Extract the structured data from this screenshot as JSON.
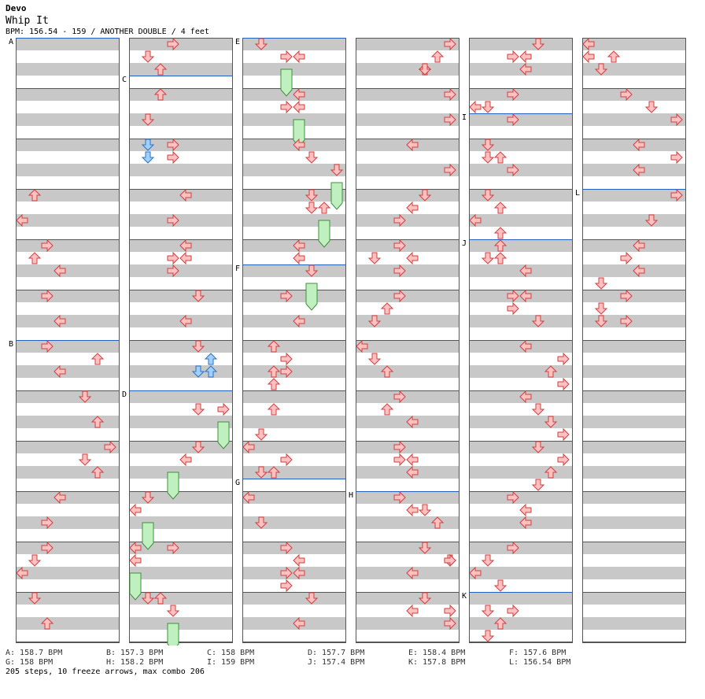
{
  "header": {
    "artist": "Devo",
    "title": "Whip It",
    "info": "BPM: 156.54 - 159 / ANOTHER DOUBLE / 4 feet"
  },
  "colors": {
    "red_fill": "#ffc0c0",
    "red_stroke": "#d04040",
    "blue_fill": "#a0d0ff",
    "blue_stroke": "#3070c0",
    "freeze_fill": "#c0f0c0",
    "freeze_stroke": "#409040",
    "band": "#c8c8c8",
    "bpm_line": "#2060c0"
  },
  "bpm_labels": [
    {
      "id": "A",
      "col": 0,
      "beat": 0
    },
    {
      "id": "B",
      "col": 0,
      "beat": 24
    },
    {
      "id": "C",
      "col": 1,
      "beat": 3
    },
    {
      "id": "D",
      "col": 1,
      "beat": 28
    },
    {
      "id": "E",
      "col": 2,
      "beat": 0
    },
    {
      "id": "F",
      "col": 2,
      "beat": 18
    },
    {
      "id": "G",
      "col": 2,
      "beat": 35
    },
    {
      "id": "H",
      "col": 3,
      "beat": 36
    },
    {
      "id": "I",
      "col": 4,
      "beat": 6
    },
    {
      "id": "J",
      "col": 4,
      "beat": 16
    },
    {
      "id": "K",
      "col": 4,
      "beat": 44
    },
    {
      "id": "L",
      "col": 5,
      "beat": 12
    }
  ],
  "notes": [
    {
      "c": 0,
      "l": 1,
      "b": 12,
      "d": "up"
    },
    {
      "c": 0,
      "l": 0,
      "b": 14,
      "d": "left"
    },
    {
      "c": 0,
      "l": 2,
      "b": 16,
      "d": "right"
    },
    {
      "c": 0,
      "l": 1,
      "b": 17,
      "d": "up"
    },
    {
      "c": 0,
      "l": 3,
      "b": 18,
      "d": "left"
    },
    {
      "c": 0,
      "l": 2,
      "b": 20,
      "d": "right"
    },
    {
      "c": 0,
      "l": 3,
      "b": 22,
      "d": "left"
    },
    {
      "c": 0,
      "l": 2,
      "b": 24,
      "d": "right"
    },
    {
      "c": 0,
      "l": 6,
      "b": 25,
      "d": "up"
    },
    {
      "c": 0,
      "l": 3,
      "b": 26,
      "d": "left"
    },
    {
      "c": 0,
      "l": 5,
      "b": 28,
      "d": "down"
    },
    {
      "c": 0,
      "l": 6,
      "b": 30,
      "d": "up"
    },
    {
      "c": 0,
      "l": 7,
      "b": 32,
      "d": "right"
    },
    {
      "c": 0,
      "l": 5,
      "b": 33,
      "d": "down"
    },
    {
      "c": 0,
      "l": 6,
      "b": 34,
      "d": "up"
    },
    {
      "c": 0,
      "l": 3,
      "b": 36,
      "d": "left"
    },
    {
      "c": 0,
      "l": 2,
      "b": 38,
      "d": "right"
    },
    {
      "c": 0,
      "l": 2,
      "b": 40,
      "d": "right"
    },
    {
      "c": 0,
      "l": 1,
      "b": 41,
      "d": "down"
    },
    {
      "c": 0,
      "l": 0,
      "b": 42,
      "d": "left"
    },
    {
      "c": 0,
      "l": 1,
      "b": 44,
      "d": "down"
    },
    {
      "c": 0,
      "l": 2,
      "b": 46,
      "d": "up"
    },
    {
      "c": 1,
      "l": 3,
      "b": 0,
      "d": "right"
    },
    {
      "c": 1,
      "l": 1,
      "b": 1,
      "d": "down"
    },
    {
      "c": 1,
      "l": 2,
      "b": 2,
      "d": "up"
    },
    {
      "c": 1,
      "l": 2,
      "b": 4,
      "d": "up"
    },
    {
      "c": 1,
      "l": 1,
      "b": 6,
      "d": "down"
    },
    {
      "c": 1,
      "l": 1,
      "b": 8,
      "d": "down"
    },
    {
      "c": 1,
      "l": 3,
      "b": 8,
      "d": "right"
    },
    {
      "c": 1,
      "l": 1,
      "b": 9,
      "d": "down"
    },
    {
      "c": 1,
      "l": 3,
      "b": 9,
      "d": "right"
    },
    {
      "c": 1,
      "l": 4,
      "b": 12,
      "d": "left"
    },
    {
      "c": 1,
      "l": 3,
      "b": 14,
      "d": "right"
    },
    {
      "c": 1,
      "l": 4,
      "b": 16,
      "d": "left"
    },
    {
      "c": 1,
      "l": 3,
      "b": 17,
      "d": "right"
    },
    {
      "c": 1,
      "l": 4,
      "b": 17,
      "d": "left"
    },
    {
      "c": 1,
      "l": 3,
      "b": 18,
      "d": "right"
    },
    {
      "c": 1,
      "l": 5,
      "b": 20,
      "d": "down"
    },
    {
      "c": 1,
      "l": 4,
      "b": 22,
      "d": "left"
    },
    {
      "c": 1,
      "l": 5,
      "b": 24,
      "d": "down"
    },
    {
      "c": 1,
      "l": 6,
      "b": 25,
      "d": "up"
    },
    {
      "c": 1,
      "l": 5,
      "b": 26,
      "d": "down"
    },
    {
      "c": 1,
      "l": 6,
      "b": 26,
      "d": "up"
    },
    {
      "c": 1,
      "l": 5,
      "b": 29,
      "d": "down"
    },
    {
      "c": 1,
      "l": 7,
      "b": 29,
      "d": "right"
    },
    {
      "c": 1,
      "l": 5,
      "b": 32,
      "d": "down"
    },
    {
      "c": 1,
      "l": 4,
      "b": 33,
      "d": "left"
    },
    {
      "c": 1,
      "l": 0,
      "b": 37,
      "d": "left"
    },
    {
      "c": 1,
      "l": 1,
      "b": 36,
      "d": "down"
    },
    {
      "c": 1,
      "l": 3,
      "b": 40,
      "d": "right"
    },
    {
      "c": 1,
      "l": 0,
      "b": 40,
      "d": "left"
    },
    {
      "c": 1,
      "l": 0,
      "b": 41,
      "d": "left"
    },
    {
      "c": 1,
      "l": 1,
      "b": 44,
      "d": "down"
    },
    {
      "c": 1,
      "l": 2,
      "b": 44,
      "d": "up"
    },
    {
      "c": 1,
      "l": 3,
      "b": 45,
      "d": "down"
    },
    {
      "c": 2,
      "l": 1,
      "b": 0,
      "d": "down"
    },
    {
      "c": 2,
      "l": 4,
      "b": 1,
      "d": "left"
    },
    {
      "c": 2,
      "l": 3,
      "b": 1,
      "d": "right"
    },
    {
      "c": 2,
      "l": 4,
      "b": 4,
      "d": "left"
    },
    {
      "c": 2,
      "l": 3,
      "b": 5,
      "d": "right"
    },
    {
      "c": 2,
      "l": 4,
      "b": 5,
      "d": "left"
    },
    {
      "c": 2,
      "l": 4,
      "b": 8,
      "d": "left"
    },
    {
      "c": 2,
      "l": 5,
      "b": 9,
      "d": "down"
    },
    {
      "c": 2,
      "l": 7,
      "b": 10,
      "d": "down"
    },
    {
      "c": 2,
      "l": 5,
      "b": 12,
      "d": "down"
    },
    {
      "c": 2,
      "l": 5,
      "b": 13,
      "d": "down"
    },
    {
      "c": 2,
      "l": 6,
      "b": 13,
      "d": "up"
    },
    {
      "c": 2,
      "l": 4,
      "b": 16,
      "d": "left"
    },
    {
      "c": 2,
      "l": 4,
      "b": 17,
      "d": "left"
    },
    {
      "c": 2,
      "l": 5,
      "b": 18,
      "d": "down"
    },
    {
      "c": 2,
      "l": 3,
      "b": 20,
      "d": "right"
    },
    {
      "c": 2,
      "l": 4,
      "b": 22,
      "d": "left"
    },
    {
      "c": 2,
      "l": 2,
      "b": 24,
      "d": "up"
    },
    {
      "c": 2,
      "l": 3,
      "b": 25,
      "d": "right"
    },
    {
      "c": 2,
      "l": 2,
      "b": 26,
      "d": "up"
    },
    {
      "c": 2,
      "l": 3,
      "b": 26,
      "d": "right"
    },
    {
      "c": 2,
      "l": 2,
      "b": 27,
      "d": "up"
    },
    {
      "c": 2,
      "l": 2,
      "b": 29,
      "d": "up"
    },
    {
      "c": 2,
      "l": 1,
      "b": 31,
      "d": "down"
    },
    {
      "c": 2,
      "l": 0,
      "b": 32,
      "d": "left"
    },
    {
      "c": 2,
      "l": 3,
      "b": 33,
      "d": "right"
    },
    {
      "c": 2,
      "l": 2,
      "b": 34,
      "d": "up"
    },
    {
      "c": 2,
      "l": 1,
      "b": 34,
      "d": "down"
    },
    {
      "c": 2,
      "l": 0,
      "b": 36,
      "d": "left"
    },
    {
      "c": 2,
      "l": 1,
      "b": 38,
      "d": "down"
    },
    {
      "c": 2,
      "l": 3,
      "b": 40,
      "d": "right"
    },
    {
      "c": 2,
      "l": 4,
      "b": 41,
      "d": "left"
    },
    {
      "c": 2,
      "l": 3,
      "b": 42,
      "d": "right"
    },
    {
      "c": 2,
      "l": 4,
      "b": 42,
      "d": "left"
    },
    {
      "c": 2,
      "l": 3,
      "b": 43,
      "d": "right"
    },
    {
      "c": 2,
      "l": 5,
      "b": 44,
      "d": "down"
    },
    {
      "c": 2,
      "l": 4,
      "b": 46,
      "d": "left"
    },
    {
      "c": 3,
      "l": 7,
      "b": 0,
      "d": "right"
    },
    {
      "c": 3,
      "l": 6,
      "b": 1,
      "d": "up"
    },
    {
      "c": 3,
      "l": 5,
      "b": 2,
      "d": "up"
    },
    {
      "c": 3,
      "l": 5,
      "b": 2,
      "d": "down"
    },
    {
      "c": 3,
      "l": 7,
      "b": 4,
      "d": "right"
    },
    {
      "c": 3,
      "l": 7,
      "b": 6,
      "d": "right"
    },
    {
      "c": 3,
      "l": 4,
      "b": 8,
      "d": "left"
    },
    {
      "c": 3,
      "l": 7,
      "b": 10,
      "d": "right"
    },
    {
      "c": 3,
      "l": 5,
      "b": 12,
      "d": "down"
    },
    {
      "c": 3,
      "l": 4,
      "b": 13,
      "d": "left"
    },
    {
      "c": 3,
      "l": 3,
      "b": 14,
      "d": "right"
    },
    {
      "c": 3,
      "l": 3,
      "b": 16,
      "d": "right"
    },
    {
      "c": 3,
      "l": 1,
      "b": 17,
      "d": "down"
    },
    {
      "c": 3,
      "l": 4,
      "b": 17,
      "d": "left"
    },
    {
      "c": 3,
      "l": 3,
      "b": 18,
      "d": "right"
    },
    {
      "c": 3,
      "l": 3,
      "b": 20,
      "d": "right"
    },
    {
      "c": 3,
      "l": 2,
      "b": 21,
      "d": "up"
    },
    {
      "c": 3,
      "l": 1,
      "b": 22,
      "d": "down"
    },
    {
      "c": 3,
      "l": 0,
      "b": 24,
      "d": "left"
    },
    {
      "c": 3,
      "l": 1,
      "b": 25,
      "d": "down"
    },
    {
      "c": 3,
      "l": 2,
      "b": 26,
      "d": "up"
    },
    {
      "c": 3,
      "l": 3,
      "b": 28,
      "d": "right"
    },
    {
      "c": 3,
      "l": 2,
      "b": 29,
      "d": "up"
    },
    {
      "c": 3,
      "l": 4,
      "b": 30,
      "d": "left"
    },
    {
      "c": 3,
      "l": 3,
      "b": 32,
      "d": "right"
    },
    {
      "c": 3,
      "l": 4,
      "b": 33,
      "d": "left"
    },
    {
      "c": 3,
      "l": 3,
      "b": 33,
      "d": "right"
    },
    {
      "c": 3,
      "l": 4,
      "b": 34,
      "d": "left"
    },
    {
      "c": 3,
      "l": 3,
      "b": 36,
      "d": "right"
    },
    {
      "c": 3,
      "l": 5,
      "b": 37,
      "d": "down"
    },
    {
      "c": 3,
      "l": 4,
      "b": 37,
      "d": "left"
    },
    {
      "c": 3,
      "l": 6,
      "b": 38,
      "d": "up"
    },
    {
      "c": 3,
      "l": 5,
      "b": 40,
      "d": "down"
    },
    {
      "c": 3,
      "l": 7,
      "b": 41,
      "d": "down"
    },
    {
      "c": 3,
      "l": 7,
      "b": 41,
      "d": "right"
    },
    {
      "c": 3,
      "l": 4,
      "b": 42,
      "d": "left"
    },
    {
      "c": 3,
      "l": 5,
      "b": 44,
      "d": "down"
    },
    {
      "c": 3,
      "l": 4,
      "b": 45,
      "d": "left"
    },
    {
      "c": 3,
      "l": 7,
      "b": 45,
      "d": "right"
    },
    {
      "c": 3,
      "l": 7,
      "b": 46,
      "d": "right"
    },
    {
      "c": 4,
      "l": 5,
      "b": 0,
      "d": "down"
    },
    {
      "c": 4,
      "l": 4,
      "b": 1,
      "d": "left"
    },
    {
      "c": 4,
      "l": 3,
      "b": 1,
      "d": "right"
    },
    {
      "c": 4,
      "l": 4,
      "b": 2,
      "d": "left"
    },
    {
      "c": 4,
      "l": 3,
      "b": 4,
      "d": "right"
    },
    {
      "c": 4,
      "l": 1,
      "b": 5,
      "d": "down"
    },
    {
      "c": 4,
      "l": 0,
      "b": 5,
      "d": "left"
    },
    {
      "c": 4,
      "l": 3,
      "b": 6,
      "d": "right"
    },
    {
      "c": 4,
      "l": 1,
      "b": 8,
      "d": "down"
    },
    {
      "c": 4,
      "l": 2,
      "b": 9,
      "d": "up"
    },
    {
      "c": 4,
      "l": 1,
      "b": 9,
      "d": "down"
    },
    {
      "c": 4,
      "l": 3,
      "b": 10,
      "d": "right"
    },
    {
      "c": 4,
      "l": 1,
      "b": 12,
      "d": "down"
    },
    {
      "c": 4,
      "l": 2,
      "b": 13,
      "d": "up"
    },
    {
      "c": 4,
      "l": 0,
      "b": 14,
      "d": "left"
    },
    {
      "c": 4,
      "l": 2,
      "b": 15,
      "d": "up"
    },
    {
      "c": 4,
      "l": 2,
      "b": 16,
      "d": "up"
    },
    {
      "c": 4,
      "l": 1,
      "b": 17,
      "d": "down"
    },
    {
      "c": 4,
      "l": 2,
      "b": 17,
      "d": "up"
    },
    {
      "c": 4,
      "l": 4,
      "b": 18,
      "d": "left"
    },
    {
      "c": 4,
      "l": 3,
      "b": 20,
      "d": "right"
    },
    {
      "c": 4,
      "l": 4,
      "b": 20,
      "d": "left"
    },
    {
      "c": 4,
      "l": 3,
      "b": 21,
      "d": "right"
    },
    {
      "c": 4,
      "l": 5,
      "b": 22,
      "d": "down"
    },
    {
      "c": 4,
      "l": 4,
      "b": 24,
      "d": "left"
    },
    {
      "c": 4,
      "l": 7,
      "b": 25,
      "d": "right"
    },
    {
      "c": 4,
      "l": 6,
      "b": 26,
      "d": "up"
    },
    {
      "c": 4,
      "l": 7,
      "b": 27,
      "d": "right"
    },
    {
      "c": 4,
      "l": 4,
      "b": 28,
      "d": "left"
    },
    {
      "c": 4,
      "l": 5,
      "b": 29,
      "d": "down"
    },
    {
      "c": 4,
      "l": 6,
      "b": 30,
      "d": "down"
    },
    {
      "c": 4,
      "l": 7,
      "b": 31,
      "d": "right"
    },
    {
      "c": 4,
      "l": 5,
      "b": 32,
      "d": "down"
    },
    {
      "c": 4,
      "l": 7,
      "b": 33,
      "d": "right"
    },
    {
      "c": 4,
      "l": 6,
      "b": 34,
      "d": "up"
    },
    {
      "c": 4,
      "l": 5,
      "b": 35,
      "d": "down"
    },
    {
      "c": 4,
      "l": 3,
      "b": 36,
      "d": "right"
    },
    {
      "c": 4,
      "l": 4,
      "b": 37,
      "d": "left"
    },
    {
      "c": 4,
      "l": 4,
      "b": 38,
      "d": "left"
    },
    {
      "c": 4,
      "l": 3,
      "b": 40,
      "d": "right"
    },
    {
      "c": 4,
      "l": 1,
      "b": 41,
      "d": "down"
    },
    {
      "c": 4,
      "l": 0,
      "b": 42,
      "d": "left"
    },
    {
      "c": 4,
      "l": 2,
      "b": 43,
      "d": "down"
    },
    {
      "c": 4,
      "l": 1,
      "b": 45,
      "d": "down"
    },
    {
      "c": 4,
      "l": 3,
      "b": 45,
      "d": "right"
    },
    {
      "c": 4,
      "l": 2,
      "b": 46,
      "d": "up"
    },
    {
      "c": 4,
      "l": 1,
      "b": 47,
      "d": "down"
    },
    {
      "c": 5,
      "l": 0,
      "b": 0,
      "d": "left"
    },
    {
      "c": 5,
      "l": 2,
      "b": 1,
      "d": "up"
    },
    {
      "c": 5,
      "l": 0,
      "b": 1,
      "d": "left"
    },
    {
      "c": 5,
      "l": 1,
      "b": 2,
      "d": "down"
    },
    {
      "c": 5,
      "l": 3,
      "b": 4,
      "d": "right"
    },
    {
      "c": 5,
      "l": 5,
      "b": 5,
      "d": "down"
    },
    {
      "c": 5,
      "l": 7,
      "b": 6,
      "d": "right"
    },
    {
      "c": 5,
      "l": 4,
      "b": 8,
      "d": "left"
    },
    {
      "c": 5,
      "l": 7,
      "b": 9,
      "d": "right"
    },
    {
      "c": 5,
      "l": 4,
      "b": 10,
      "d": "left"
    },
    {
      "c": 5,
      "l": 7,
      "b": 12,
      "d": "right"
    },
    {
      "c": 5,
      "l": 5,
      "b": 14,
      "d": "down"
    },
    {
      "c": 5,
      "l": 4,
      "b": 16,
      "d": "left"
    },
    {
      "c": 5,
      "l": 3,
      "b": 17,
      "d": "right"
    },
    {
      "c": 5,
      "l": 4,
      "b": 18,
      "d": "left"
    },
    {
      "c": 5,
      "l": 1,
      "b": 19,
      "d": "down"
    },
    {
      "c": 5,
      "l": 3,
      "b": 20,
      "d": "right"
    },
    {
      "c": 5,
      "l": 1,
      "b": 21,
      "d": "down"
    },
    {
      "c": 5,
      "l": 1,
      "b": 22,
      "d": "down"
    },
    {
      "c": 5,
      "l": 3,
      "b": 22,
      "d": "right"
    }
  ],
  "freezes": [
    {
      "c": 1,
      "l": 7,
      "b1": 30,
      "b2": 32
    },
    {
      "c": 1,
      "l": 3,
      "b1": 34,
      "b2": 36
    },
    {
      "c": 1,
      "l": 1,
      "b1": 38,
      "b2": 40
    },
    {
      "c": 1,
      "l": 0,
      "b1": 42,
      "b2": 44
    },
    {
      "c": 1,
      "l": 3,
      "b1": 46,
      "b2": 48
    },
    {
      "c": 2,
      "l": 3,
      "b1": 2,
      "b2": 4
    },
    {
      "c": 2,
      "l": 4,
      "b1": 6,
      "b2": 8
    },
    {
      "c": 2,
      "l": 7,
      "b1": 11,
      "b2": 13
    },
    {
      "c": 2,
      "l": 6,
      "b1": 14,
      "b2": 16
    },
    {
      "c": 2,
      "l": 5,
      "b1": 19,
      "b2": 21
    }
  ],
  "bpm_legend": [
    [
      "A: 158.7 BPM",
      "B: 157.3 BPM",
      "C: 158 BPM",
      "D: 157.7 BPM",
      "E: 158.4 BPM",
      "F: 157.6 BPM"
    ],
    [
      "G: 158 BPM",
      "H: 158.2 BPM",
      "I: 159 BPM",
      "J: 157.4 BPM",
      "K: 157.8 BPM",
      "L: 156.54 BPM"
    ]
  ],
  "stats": "205 steps, 10 freeze arrows, max combo 206"
}
